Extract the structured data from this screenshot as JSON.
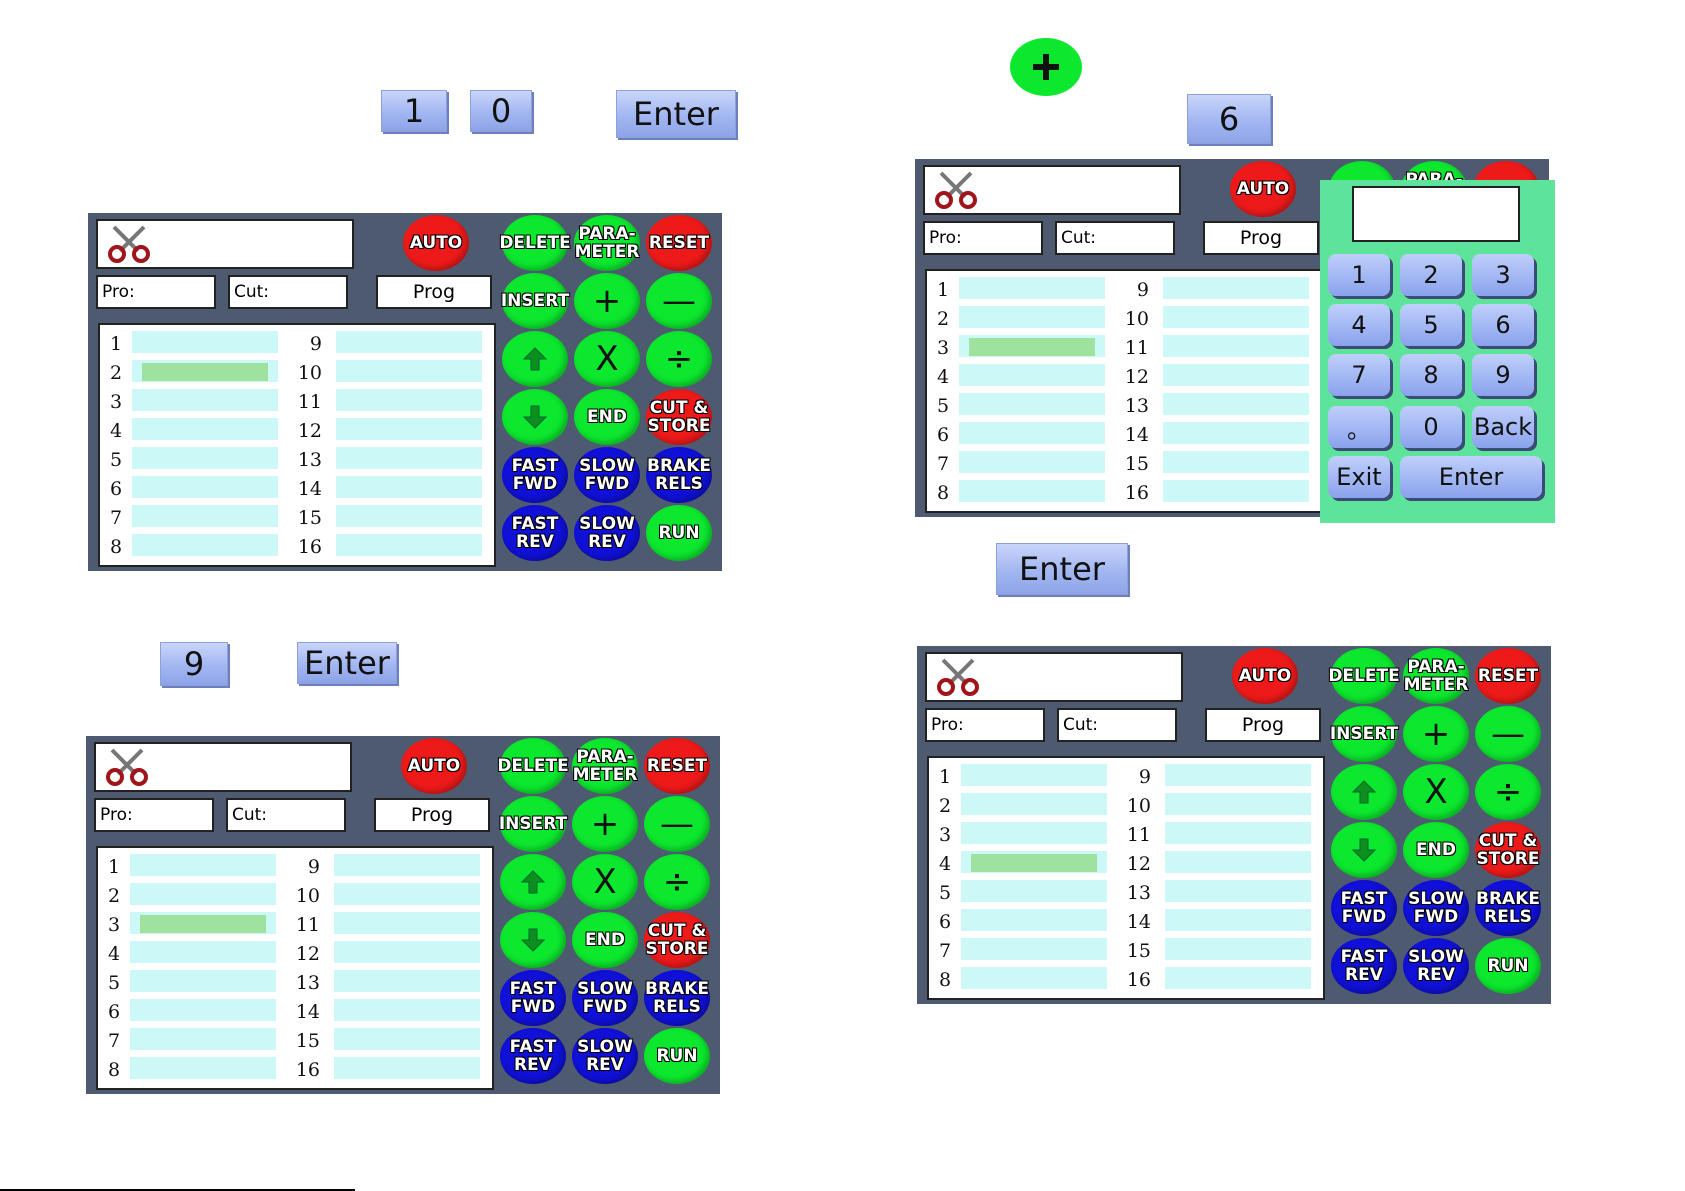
{
  "instruction_keys": {
    "top_left": [
      "1",
      "0",
      "Enter"
    ],
    "bottom_left": [
      "9",
      "Enter"
    ],
    "top_right": [
      "6"
    ],
    "middle_right": [
      "Enter"
    ]
  },
  "panel": {
    "pro_label": "Pro:",
    "cut_label": "Cut:",
    "prog_label": "Prog",
    "left_numbers": [
      "1",
      "2",
      "3",
      "4",
      "5",
      "6",
      "7",
      "8"
    ],
    "right_numbers": [
      "9",
      "10",
      "11",
      "12",
      "13",
      "14",
      "15",
      "16"
    ],
    "buttons": {
      "auto": "AUTO",
      "delete": "DELETE",
      "parameter": "PARA-\nMETER",
      "reset": "RESET",
      "insert": "INSERT",
      "plus": "+",
      "minus": "—",
      "multiply": "X",
      "divide": "÷",
      "end": "END",
      "cut_store": "CUT &\nSTORE",
      "fast_fwd": "FAST\nFWD",
      "slow_fwd": "SLOW\nFWD",
      "brake_rels": "BRAKE\nRELS",
      "fast_rev": "FAST\nREV",
      "slow_rev": "SLOW\nREV",
      "run": "RUN"
    }
  },
  "screens": [
    {
      "id": "screen-1",
      "active_row": 2
    },
    {
      "id": "screen-2",
      "active_row": 3
    },
    {
      "id": "screen-3",
      "active_row": 3
    },
    {
      "id": "screen-4",
      "active_row": 4
    }
  ],
  "keypad": {
    "keys": [
      "1",
      "2",
      "3",
      "4",
      "5",
      "6",
      "7",
      "8",
      "9",
      "。",
      "0",
      "Back",
      "Exit",
      "Enter"
    ]
  },
  "colors": {
    "panel_bg": "#4e5a70",
    "cell": "#ccf8f8",
    "active": "#9ee29e",
    "green": "#0ce82e",
    "red": "#ee1a1a",
    "blue": "#1010d8",
    "keypad_bg": "#5de49a"
  }
}
